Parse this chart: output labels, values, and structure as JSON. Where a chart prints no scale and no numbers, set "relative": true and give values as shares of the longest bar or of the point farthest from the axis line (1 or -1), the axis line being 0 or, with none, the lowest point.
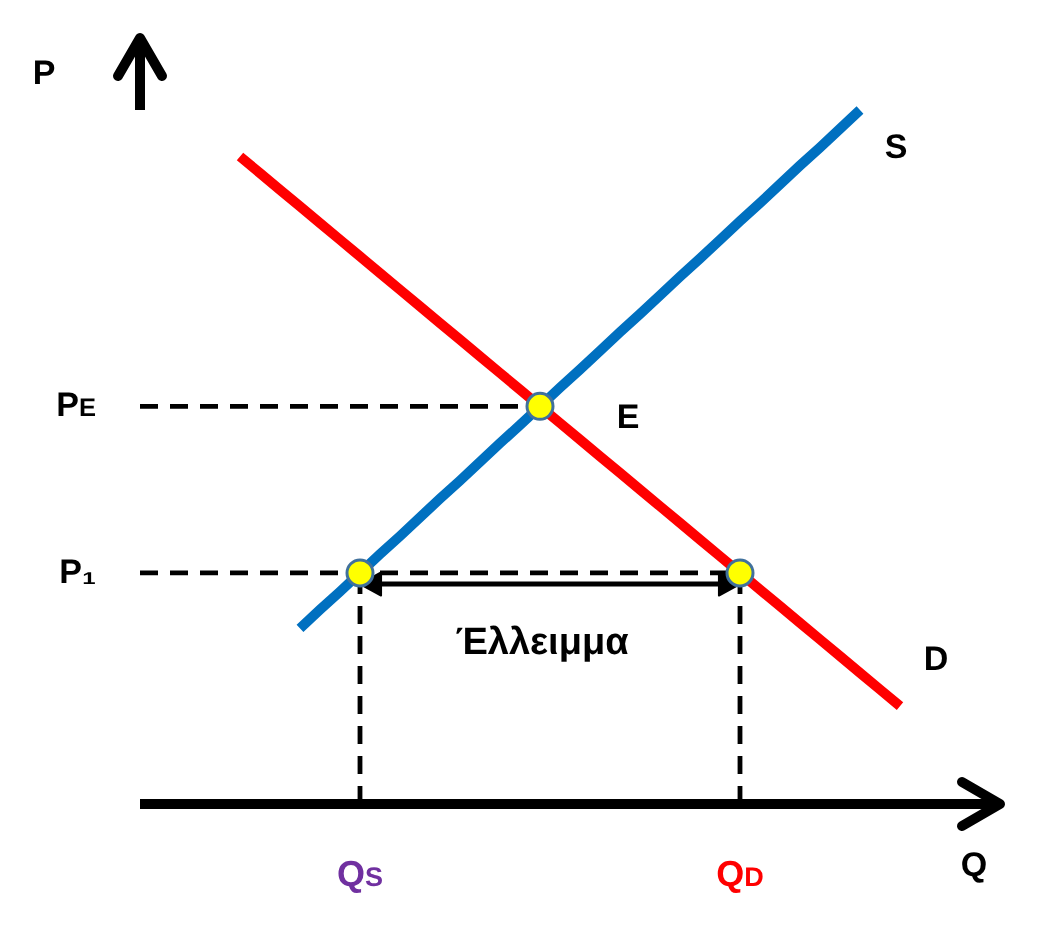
{
  "chart_data": {
    "type": "line",
    "relative": true,
    "xlabel": "Q",
    "ylabel": "P",
    "marker": "none",
    "line_style": "solid",
    "categories": [
      null,
      null,
      null,
      null,
      null,
      null,
      null,
      null,
      null,
      null,
      null,
      "Q$_{S}$",
      null,
      null,
      null,
      null,
      null,
      null,
      null,
      null,
      null,
      null,
      null,
      null,
      null,
      null,
      null,
      null,
      null,
      null,
      "Q$_{D}$",
      null,
      null,
      null,
      null,
      null,
      null,
      null,
      null,
      null,
      null,
      null,
      null,
      null
    ],
    "series": [
      {
        "type": "line",
        "color": "#000000",
        "values": [
          null,
          null,
          null,
          null,
          null,
          null,
          null,
          null,
          null,
          null,
          null,
          0.317,
          0.317,
          0.317,
          0.317,
          0.317,
          0.317,
          0.317,
          0.317,
          0.317,
          0.317,
          0.317,
          0.317,
          0.317,
          0.317,
          0.317,
          0.317,
          0.317,
          0.317,
          0.317,
          0.317,
          null,
          null,
          null,
          null,
          null,
          null,
          null,
          null,
          null,
          null,
          null,
          null,
          null
        ]
      },
      {
        "name": "S",
        "type": "line",
        "color": "#0070c0",
        "values": [
          null,
          null,
          null,
          null,
          null,
          null,
          null,
          null,
          0.253,
          0.28,
          0.306,
          0.333,
          0.36,
          0.386,
          0.413,
          0.44,
          0.466,
          0.493,
          0.52,
          0.546,
          0.573,
          0.6,
          0.626,
          0.653,
          0.68,
          0.706,
          0.733,
          0.76,
          0.786,
          0.813,
          0.84,
          0.866,
          0.893,
          0.92,
          0.946,
          0.973,
          1,
          null,
          null,
          null,
          null,
          null,
          null,
          null
        ]
      },
      {
        "name": "D",
        "type": "line",
        "color": "#ff0000",
        "values": [
          null,
          null,
          null,
          null,
          null,
          0.933,
          0.909,
          0.885,
          0.861,
          0.837,
          0.813,
          0.789,
          0.765,
          0.741,
          0.717,
          0.693,
          0.669,
          0.645,
          0.621,
          0.597,
          0.573,
          0.549,
          0.525,
          0.501,
          0.477,
          0.453,
          0.429,
          0.405,
          0.381,
          0.357,
          0.333,
          0.309,
          0.285,
          0.261,
          0.237,
          0.213,
          0.189,
          0.165,
          0.141,
          null,
          null,
          null,
          null,
          null
        ]
      },
      {
        "type": "lollipop",
        "color": "#ffff00",
        "marker": "circle",
        "line_style": "dashed",
        "values": [
          null,
          null,
          null,
          null,
          null,
          null,
          null,
          null,
          null,
          null,
          null,
          0.333,
          null,
          null,
          null,
          null,
          null,
          null,
          null,
          null,
          null,
          null,
          null,
          null,
          null,
          null,
          null,
          null,
          null,
          null,
          0.333,
          null,
          null,
          null,
          null,
          null,
          null,
          null,
          null,
          null,
          null,
          null,
          null,
          null
        ]
      },
      {
        "type": "scatter",
        "color": "#ffff00",
        "marker": "circle",
        "values": [
          null,
          null,
          null,
          null,
          null,
          null,
          null,
          null,
          null,
          null,
          null,
          null,
          null,
          null,
          null,
          null,
          null,
          null,
          null,
          null,
          0.573,
          null,
          null,
          null,
          null,
          null,
          null,
          null,
          null,
          null,
          null,
          null,
          null,
          null,
          null,
          null,
          null,
          null,
          null,
          null,
          null,
          null,
          null,
          null
        ]
      }
    ],
    "ref_lines": [
      {
        "axis": "y",
        "value": 0.573,
        "label": "P$_{E}$",
        "color": "#000000",
        "line_style": "dashed"
      },
      {
        "axis": "y",
        "value": 0.333,
        "label": "P₁",
        "color": "#000000",
        "line_style": "dashed"
      }
    ],
    "annotations": [
      "E",
      "Έλλειμμα"
    ]
  }
}
